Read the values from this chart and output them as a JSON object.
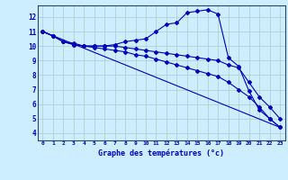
{
  "title": "Graphe des températures (°c)",
  "bg_color": "#cceeff",
  "grid_color": "#aacccc",
  "line_color": "#0000bb",
  "xlim": [
    -0.5,
    23.5
  ],
  "ylim": [
    3.5,
    12.8
  ],
  "xticks": [
    0,
    1,
    2,
    3,
    4,
    5,
    6,
    7,
    8,
    9,
    10,
    11,
    12,
    13,
    14,
    15,
    16,
    17,
    18,
    19,
    20,
    21,
    22,
    23
  ],
  "yticks": [
    4,
    5,
    6,
    7,
    8,
    9,
    10,
    11,
    12
  ],
  "series": {
    "curve1": {
      "x": [
        0,
        1,
        2,
        3,
        4,
        5,
        6,
        7,
        8,
        9,
        10,
        11,
        12,
        13,
        14,
        15,
        16,
        17,
        18,
        19,
        20,
        21,
        22,
        23
      ],
      "y": [
        11.0,
        10.7,
        10.3,
        10.1,
        10.0,
        10.0,
        10.0,
        10.1,
        10.3,
        10.4,
        10.5,
        11.0,
        11.5,
        11.6,
        12.3,
        12.4,
        12.5,
        12.2,
        9.2,
        8.6,
        6.9,
        5.6,
        5.0,
        4.4
      ]
    },
    "curve2": {
      "x": [
        0,
        1,
        2,
        3,
        4,
        5,
        6,
        7,
        8,
        9,
        10,
        11,
        12,
        13,
        14,
        15,
        16,
        17,
        18,
        19,
        20,
        21,
        22,
        23
      ],
      "y": [
        11.0,
        10.7,
        10.3,
        10.2,
        10.0,
        10.0,
        10.0,
        10.0,
        9.9,
        9.8,
        9.7,
        9.6,
        9.5,
        9.4,
        9.3,
        9.2,
        9.1,
        9.0,
        8.7,
        8.5,
        7.5,
        6.5,
        5.8,
        5.0
      ]
    },
    "curve3": {
      "x": [
        0,
        23
      ],
      "y": [
        11.0,
        4.4
      ]
    },
    "curve4": {
      "x": [
        0,
        1,
        2,
        3,
        4,
        5,
        6,
        7,
        8,
        9,
        10,
        11,
        12,
        13,
        14,
        15,
        16,
        17,
        18,
        19,
        20,
        21,
        22,
        23
      ],
      "y": [
        11.0,
        10.7,
        10.3,
        10.1,
        10.0,
        9.9,
        9.8,
        9.7,
        9.6,
        9.4,
        9.3,
        9.1,
        8.9,
        8.7,
        8.5,
        8.3,
        8.1,
        7.9,
        7.5,
        7.0,
        6.5,
        5.8,
        5.0,
        4.4
      ]
    }
  }
}
